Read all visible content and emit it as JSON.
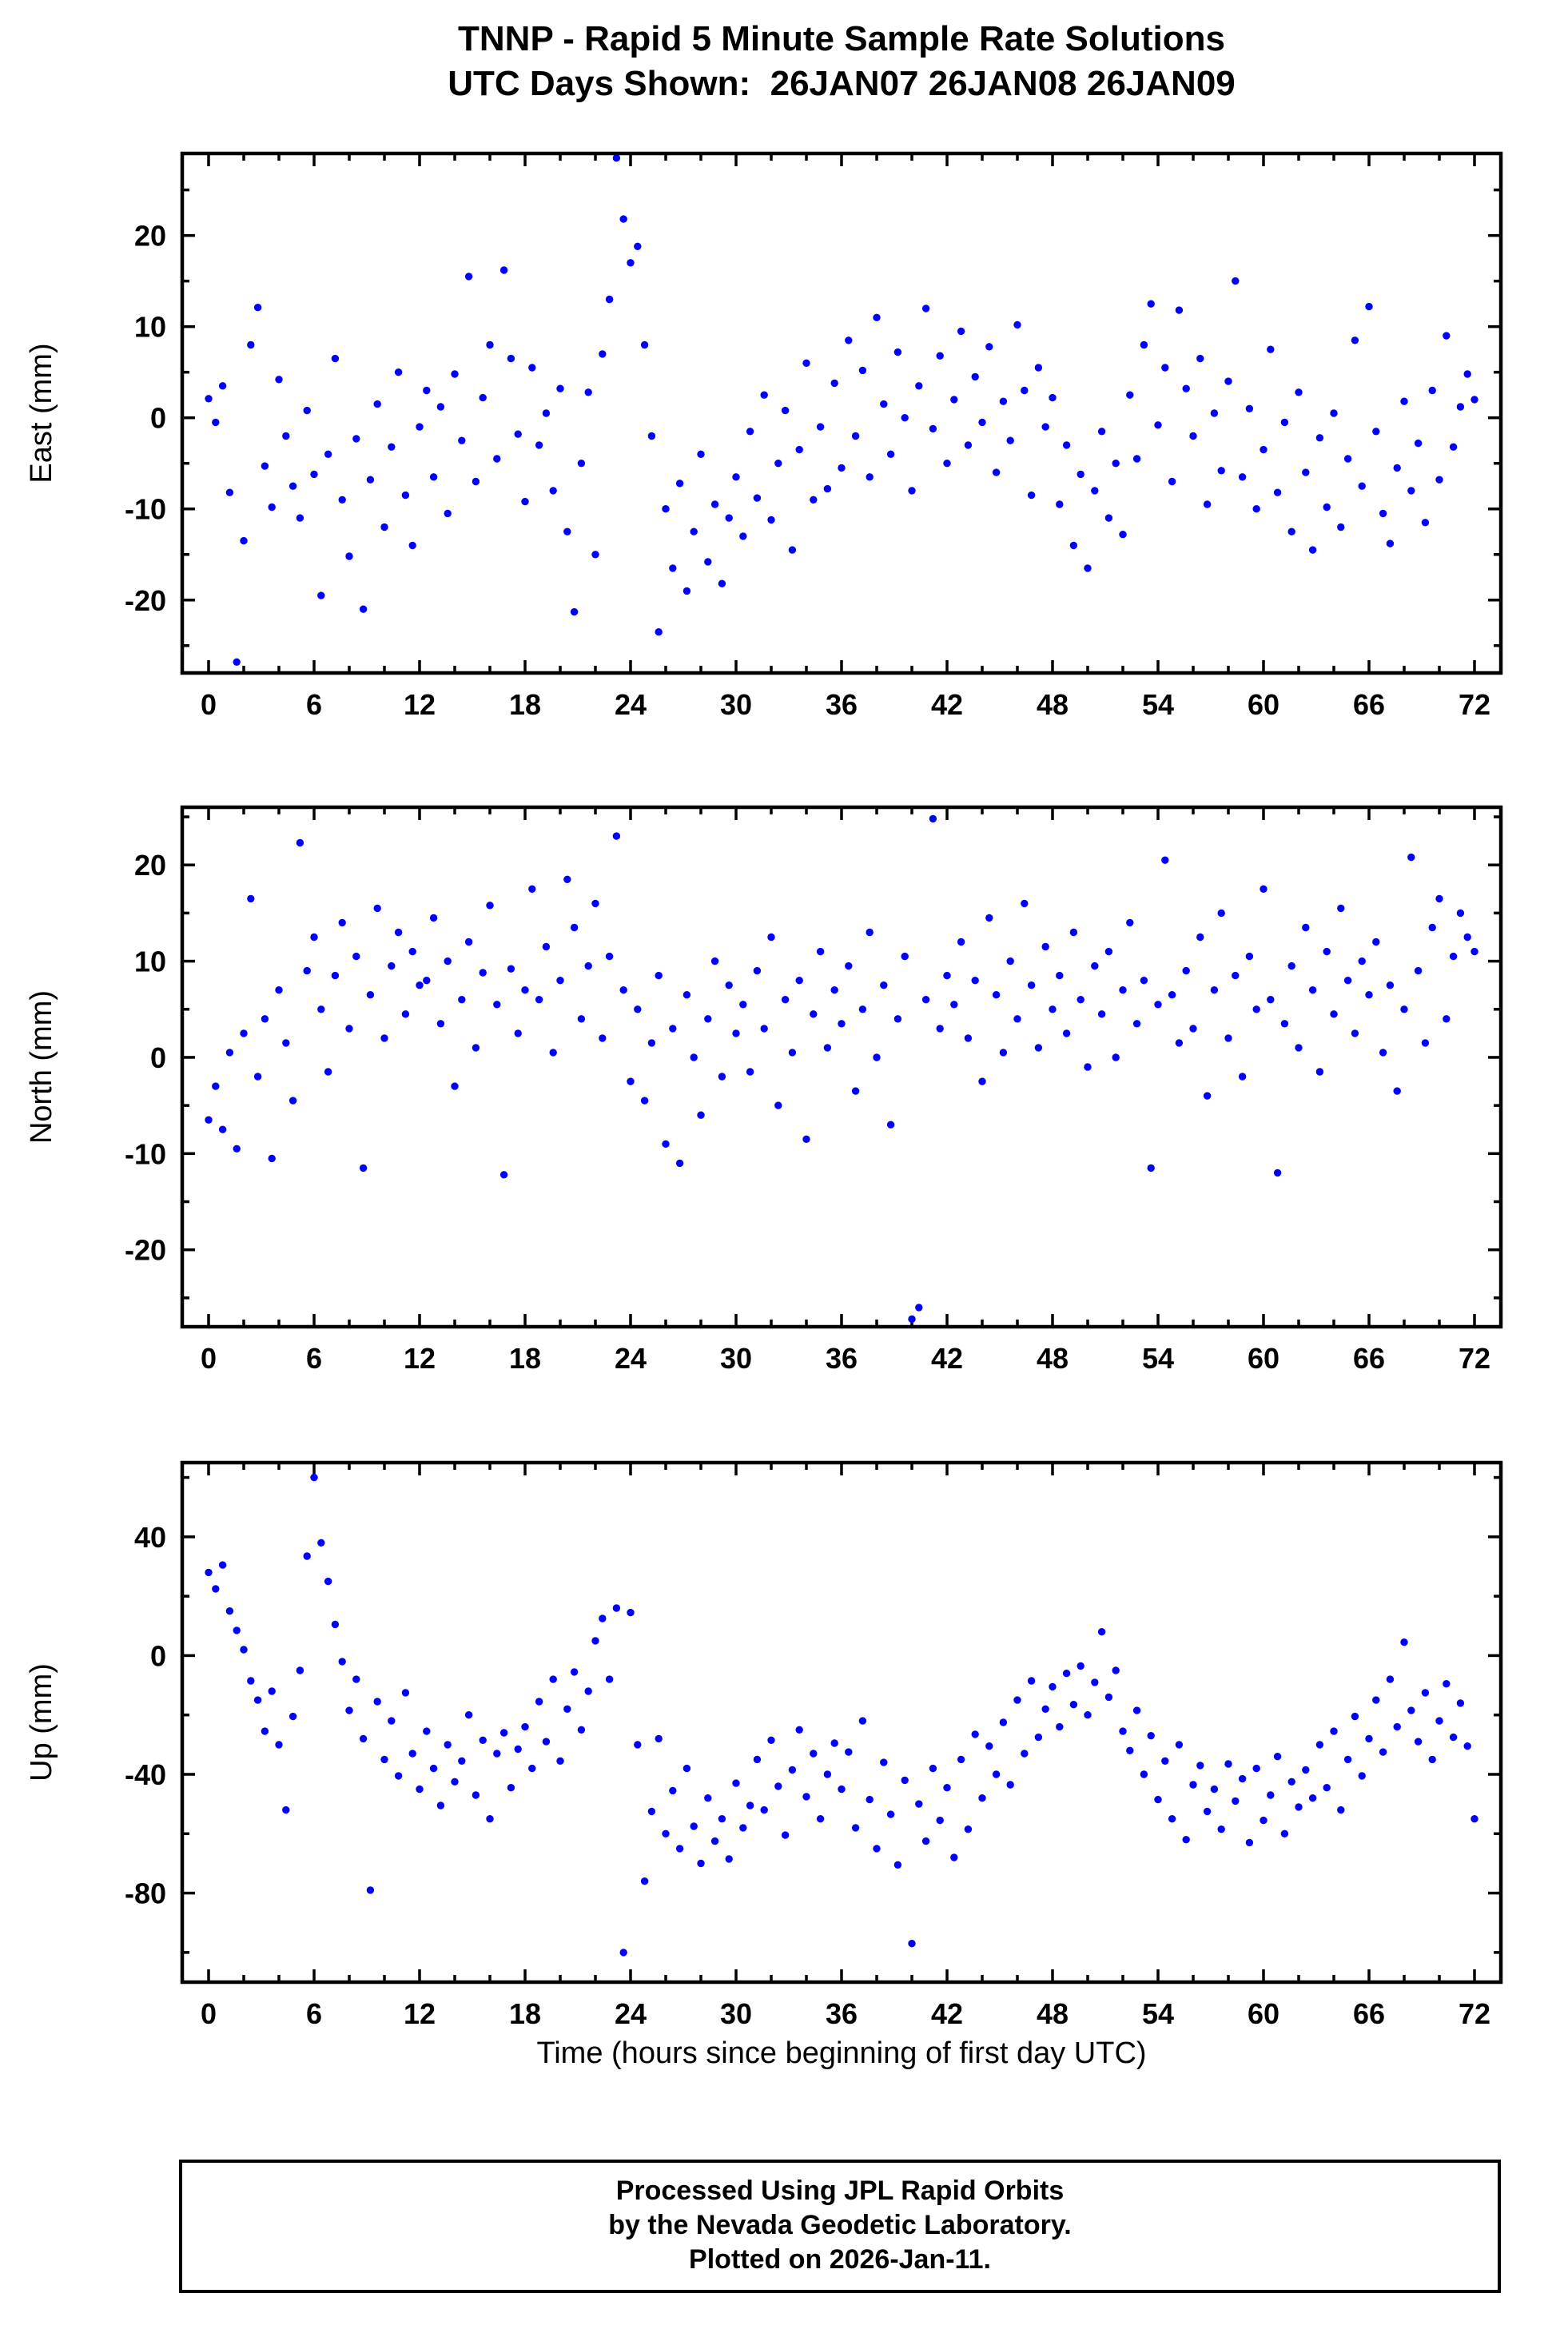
{
  "title": {
    "line1": "TNNP - Rapid 5 Minute Sample Rate Solutions",
    "line2": "UTC Days Shown:  26JAN07 26JAN08 26JAN09"
  },
  "footer": {
    "line1": "Processed Using JPL Rapid Orbits",
    "line2": "by the Nevada Geodetic Laboratory.",
    "line3": "Plotted on 2026-Jan-11."
  },
  "chart_data": {
    "type": "scatter",
    "title": "TNNP - Rapid 5 Minute Sample Rate Solutions — UTC Days Shown: 26JAN07 26JAN08 26JAN09",
    "xlabel": "Time (hours since beginning of first day UTC)",
    "point_color": "#0000ff",
    "xlim": [
      -1.5,
      73.5
    ],
    "xticks": [
      0,
      6,
      12,
      18,
      24,
      30,
      36,
      42,
      48,
      54,
      60,
      66,
      72
    ],
    "xminor_step": 2,
    "x_range": [
      0,
      72
    ],
    "x_sampling": "uniform",
    "panels": [
      {
        "name": "east",
        "ylabel": "East (mm)",
        "ylim": [
          -28,
          29
        ],
        "yticks": [
          -20,
          -10,
          0,
          10,
          20
        ],
        "yminor_step": 5,
        "y": [
          2.1,
          -0.5,
          3.5,
          -8.2,
          -26.8,
          -13.5,
          8.0,
          12.1,
          -5.3,
          -9.8,
          4.2,
          -2.0,
          -7.5,
          -11.0,
          0.8,
          -6.2,
          -19.5,
          -4.0,
          6.5,
          -9.0,
          -15.2,
          -2.3,
          -21.0,
          -6.8,
          1.5,
          -12.0,
          -3.2,
          5.0,
          -8.5,
          -14.0,
          -1.0,
          3.0,
          -6.5,
          1.2,
          -10.5,
          4.8,
          -2.5,
          15.5,
          -7.0,
          2.2,
          8.0,
          -4.5,
          16.2,
          6.5,
          -1.8,
          -9.2,
          5.5,
          -3.0,
          0.5,
          -8.0,
          3.2,
          -12.5,
          -21.3,
          -5.0,
          2.8,
          -15.0,
          7.0,
          13.0,
          28.5,
          21.8,
          17.0,
          18.8,
          8.0,
          -2.0,
          -23.5,
          -10.0,
          -16.5,
          -7.2,
          -19.0,
          -12.5,
          -4.0,
          -15.8,
          -9.5,
          -18.2,
          -11.0,
          -6.5,
          -13.0,
          -1.5,
          -8.8,
          2.5,
          -11.2,
          -5.0,
          0.8,
          -14.5,
          -3.5,
          6.0,
          -9.0,
          -1.0,
          -7.8,
          3.8,
          -5.5,
          8.5,
          -2.0,
          5.2,
          -6.5,
          11.0,
          1.5,
          -4.0,
          7.2,
          0.0,
          -8.0,
          3.5,
          12.0,
          -1.2,
          6.8,
          -5.0,
          2.0,
          9.5,
          -3.0,
          4.5,
          -0.5,
          7.8,
          -6.0,
          1.8,
          -2.5,
          10.2,
          3.0,
          -8.5,
          5.5,
          -1.0,
          2.2,
          -9.5,
          -3.0,
          -14.0,
          -6.2,
          -16.5,
          -8.0,
          -1.5,
          -11.0,
          -5.0,
          -12.8,
          2.5,
          -4.5,
          8.0,
          12.5,
          -0.8,
          5.5,
          -7.0,
          11.8,
          3.2,
          -2.0,
          6.5,
          -9.5,
          0.5,
          -5.8,
          4.0,
          15.0,
          -6.5,
          1.0,
          -10.0,
          -3.5,
          7.5,
          -8.2,
          -0.5,
          -12.5,
          2.8,
          -6.0,
          -14.5,
          -2.2,
          -9.8,
          0.5,
          -12.0,
          -4.5,
          8.5,
          -7.5,
          12.2,
          -1.5,
          -10.5,
          -13.8,
          -5.5,
          1.8,
          -8.0,
          -2.8,
          -11.5,
          3.0,
          -6.8,
          9.0,
          -3.2,
          1.2,
          4.8,
          2.0
        ]
      },
      {
        "name": "north",
        "ylabel": "North (mm)",
        "ylim": [
          -28,
          26
        ],
        "yticks": [
          -20,
          -10,
          0,
          10,
          20
        ],
        "yminor_step": 5,
        "y": [
          -6.5,
          -3.0,
          -7.5,
          0.5,
          -9.5,
          2.5,
          16.5,
          -2.0,
          4.0,
          -10.5,
          7.0,
          1.5,
          -4.5,
          22.3,
          9.0,
          12.5,
          5.0,
          -1.5,
          8.5,
          14.0,
          3.0,
          10.5,
          -11.5,
          6.5,
          15.5,
          2.0,
          9.5,
          13.0,
          4.5,
          11.0,
          7.5,
          8.0,
          14.5,
          3.5,
          10.0,
          -3.0,
          6.0,
          12.0,
          1.0,
          8.8,
          15.8,
          5.5,
          -12.2,
          9.2,
          2.5,
          7.0,
          17.5,
          6.0,
          11.5,
          0.5,
          8.0,
          18.5,
          13.5,
          4.0,
          9.5,
          16.0,
          2.0,
          10.5,
          23.0,
          7.0,
          -2.5,
          5.0,
          -4.5,
          1.5,
          8.5,
          -9.0,
          3.0,
          -11.0,
          6.5,
          0.0,
          -6.0,
          4.0,
          10.0,
          -2.0,
          7.5,
          2.5,
          5.5,
          -1.5,
          9.0,
          3.0,
          12.5,
          -5.0,
          6.0,
          0.5,
          8.0,
          -8.5,
          4.5,
          11.0,
          1.0,
          7.0,
          3.5,
          9.5,
          -3.5,
          5.0,
          13.0,
          0.0,
          7.5,
          -7.0,
          4.0,
          10.5,
          -27.2,
          -26.0,
          6.0,
          24.8,
          3.0,
          8.5,
          5.5,
          12.0,
          2.0,
          8.0,
          -2.5,
          14.5,
          6.5,
          0.5,
          10.0,
          4.0,
          16.0,
          7.5,
          1.0,
          11.5,
          5.0,
          8.5,
          2.5,
          13.0,
          6.0,
          -1.0,
          9.5,
          4.5,
          11.0,
          0.0,
          7.0,
          14.0,
          3.5,
          8.0,
          -11.5,
          5.5,
          20.5,
          6.5,
          1.5,
          9.0,
          3.0,
          12.5,
          -4.0,
          7.0,
          15.0,
          2.0,
          8.5,
          -2.0,
          10.5,
          5.0,
          17.5,
          6.0,
          -12.0,
          3.5,
          9.5,
          1.0,
          13.5,
          7.0,
          -1.5,
          11.0,
          4.5,
          15.5,
          8.0,
          2.5,
          10.0,
          6.5,
          12.0,
          0.5,
          7.5,
          -3.5,
          5.0,
          20.8,
          9.0,
          1.5,
          13.5,
          16.5,
          4.0,
          10.5,
          15.0,
          12.5,
          11.0
        ]
      },
      {
        "name": "up",
        "ylabel": "Up (mm)",
        "ylim": [
          -110,
          65
        ],
        "yticks": [
          -80,
          -40,
          0,
          40
        ],
        "yminor_step": 20,
        "y": [
          28.0,
          22.5,
          30.5,
          15.0,
          8.5,
          2.0,
          -8.5,
          -15.0,
          -25.5,
          -12.0,
          -30.0,
          -52.0,
          -20.5,
          -5.0,
          33.5,
          60.0,
          38.0,
          25.0,
          10.5,
          -2.0,
          -18.5,
          -8.0,
          -28.0,
          -79.0,
          -15.5,
          -35.0,
          -22.0,
          -40.5,
          -12.5,
          -33.0,
          -45.0,
          -25.5,
          -38.0,
          -50.5,
          -30.0,
          -42.5,
          -35.5,
          -20.0,
          -47.0,
          -28.5,
          -55.0,
          -33.0,
          -26.0,
          -44.5,
          -31.5,
          -24.0,
          -38.0,
          -15.5,
          -29.0,
          -8.0,
          -35.5,
          -18.0,
          -5.5,
          -25.0,
          -12.0,
          5.0,
          12.5,
          -8.0,
          16.0,
          -100.0,
          14.5,
          -30.0,
          -76.0,
          -52.5,
          -28.0,
          -60.0,
          -45.5,
          -65.0,
          -38.0,
          -57.5,
          -70.0,
          -48.0,
          -62.5,
          -55.0,
          -68.5,
          -43.0,
          -58.0,
          -50.5,
          -35.0,
          -52.0,
          -28.5,
          -44.0,
          -60.5,
          -38.5,
          -25.0,
          -47.5,
          -33.0,
          -55.0,
          -40.0,
          -29.5,
          -45.0,
          -32.5,
          -58.0,
          -22.0,
          -48.5,
          -65.0,
          -36.0,
          -53.5,
          -70.5,
          -42.0,
          -97.0,
          -50.0,
          -62.5,
          -38.0,
          -55.5,
          -44.5,
          -68.0,
          -35.0,
          -58.5,
          -26.5,
          -48.0,
          -30.5,
          -40.0,
          -22.5,
          -43.5,
          -15.0,
          -33.0,
          -8.5,
          -27.5,
          -18.0,
          -10.5,
          -24.0,
          -6.0,
          -16.5,
          -3.5,
          -20.0,
          -9.0,
          8.0,
          -14.0,
          -5.0,
          -25.5,
          -32.0,
          -18.5,
          -40.0,
          -27.0,
          -48.5,
          -35.5,
          -55.0,
          -30.0,
          -62.0,
          -43.5,
          -37.0,
          -52.5,
          -45.0,
          -58.5,
          -36.5,
          -49.0,
          -41.5,
          -63.0,
          -38.0,
          -55.5,
          -47.0,
          -34.0,
          -60.0,
          -42.5,
          -51.0,
          -38.5,
          -48.0,
          -30.0,
          -44.5,
          -25.5,
          -52.0,
          -35.0,
          -20.5,
          -40.5,
          -28.0,
          -15.0,
          -32.5,
          -8.0,
          -24.0,
          4.5,
          -18.5,
          -29.0,
          -12.5,
          -35.0,
          -22.0,
          -9.5,
          -27.5,
          -16.0,
          -30.5,
          -55.0
        ]
      }
    ]
  }
}
